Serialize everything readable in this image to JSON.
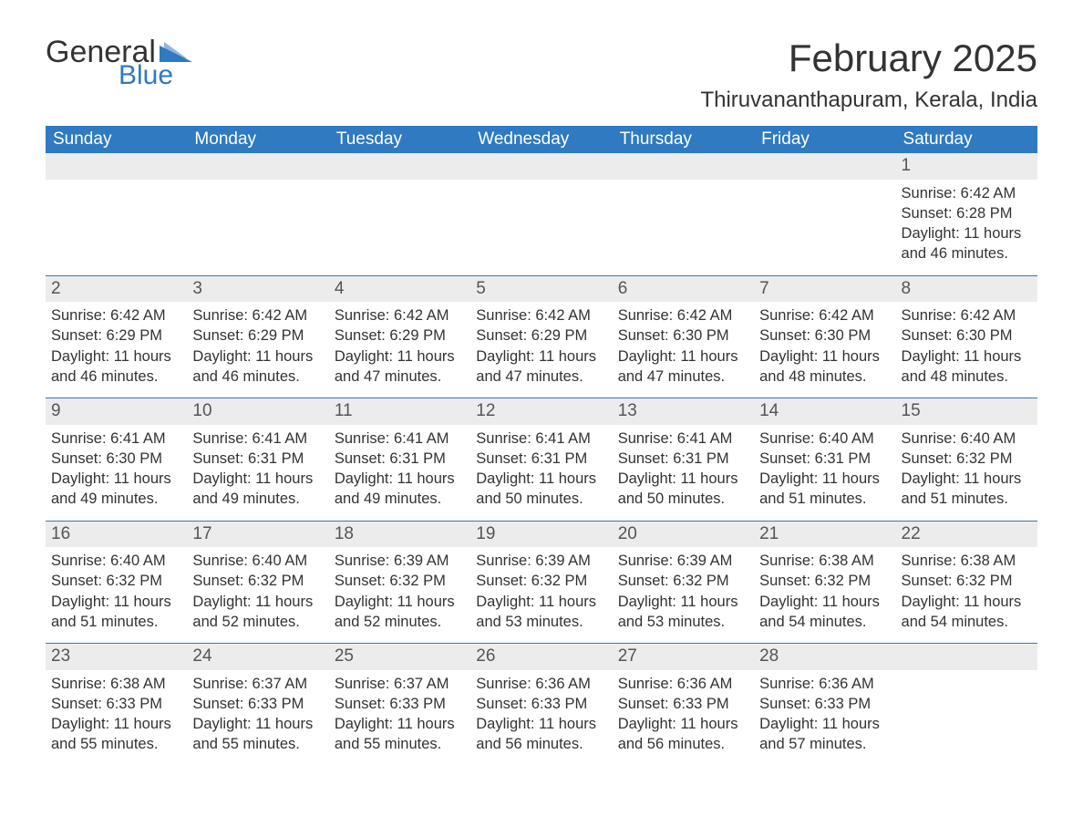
{
  "logo": {
    "text_general": "General",
    "text_blue": "Blue",
    "shape_color": "#2f7ac0"
  },
  "title": "February 2025",
  "location": "Thiruvananthapuram, Kerala, India",
  "colors": {
    "header_bg": "#2f7ac0",
    "header_text": "#ffffff",
    "daynum_bg": "#ececec",
    "daynum_text": "#555555",
    "body_text": "#333333",
    "week_border": "#2f7ac0",
    "page_bg": "#ffffff"
  },
  "typography": {
    "title_fontsize": 42,
    "location_fontsize": 24,
    "dayheader_fontsize": 19,
    "daynum_fontsize": 19,
    "body_fontsize": 16.5,
    "font_family": "Arial"
  },
  "day_headers": [
    "Sunday",
    "Monday",
    "Tuesday",
    "Wednesday",
    "Thursday",
    "Friday",
    "Saturday"
  ],
  "weeks": [
    [
      null,
      null,
      null,
      null,
      null,
      null,
      {
        "n": "1",
        "sunrise": "Sunrise: 6:42 AM",
        "sunset": "Sunset: 6:28 PM",
        "daylight": "Daylight: 11 hours and 46 minutes."
      }
    ],
    [
      {
        "n": "2",
        "sunrise": "Sunrise: 6:42 AM",
        "sunset": "Sunset: 6:29 PM",
        "daylight": "Daylight: 11 hours and 46 minutes."
      },
      {
        "n": "3",
        "sunrise": "Sunrise: 6:42 AM",
        "sunset": "Sunset: 6:29 PM",
        "daylight": "Daylight: 11 hours and 46 minutes."
      },
      {
        "n": "4",
        "sunrise": "Sunrise: 6:42 AM",
        "sunset": "Sunset: 6:29 PM",
        "daylight": "Daylight: 11 hours and 47 minutes."
      },
      {
        "n": "5",
        "sunrise": "Sunrise: 6:42 AM",
        "sunset": "Sunset: 6:29 PM",
        "daylight": "Daylight: 11 hours and 47 minutes."
      },
      {
        "n": "6",
        "sunrise": "Sunrise: 6:42 AM",
        "sunset": "Sunset: 6:30 PM",
        "daylight": "Daylight: 11 hours and 47 minutes."
      },
      {
        "n": "7",
        "sunrise": "Sunrise: 6:42 AM",
        "sunset": "Sunset: 6:30 PM",
        "daylight": "Daylight: 11 hours and 48 minutes."
      },
      {
        "n": "8",
        "sunrise": "Sunrise: 6:42 AM",
        "sunset": "Sunset: 6:30 PM",
        "daylight": "Daylight: 11 hours and 48 minutes."
      }
    ],
    [
      {
        "n": "9",
        "sunrise": "Sunrise: 6:41 AM",
        "sunset": "Sunset: 6:30 PM",
        "daylight": "Daylight: 11 hours and 49 minutes."
      },
      {
        "n": "10",
        "sunrise": "Sunrise: 6:41 AM",
        "sunset": "Sunset: 6:31 PM",
        "daylight": "Daylight: 11 hours and 49 minutes."
      },
      {
        "n": "11",
        "sunrise": "Sunrise: 6:41 AM",
        "sunset": "Sunset: 6:31 PM",
        "daylight": "Daylight: 11 hours and 49 minutes."
      },
      {
        "n": "12",
        "sunrise": "Sunrise: 6:41 AM",
        "sunset": "Sunset: 6:31 PM",
        "daylight": "Daylight: 11 hours and 50 minutes."
      },
      {
        "n": "13",
        "sunrise": "Sunrise: 6:41 AM",
        "sunset": "Sunset: 6:31 PM",
        "daylight": "Daylight: 11 hours and 50 minutes."
      },
      {
        "n": "14",
        "sunrise": "Sunrise: 6:40 AM",
        "sunset": "Sunset: 6:31 PM",
        "daylight": "Daylight: 11 hours and 51 minutes."
      },
      {
        "n": "15",
        "sunrise": "Sunrise: 6:40 AM",
        "sunset": "Sunset: 6:32 PM",
        "daylight": "Daylight: 11 hours and 51 minutes."
      }
    ],
    [
      {
        "n": "16",
        "sunrise": "Sunrise: 6:40 AM",
        "sunset": "Sunset: 6:32 PM",
        "daylight": "Daylight: 11 hours and 51 minutes."
      },
      {
        "n": "17",
        "sunrise": "Sunrise: 6:40 AM",
        "sunset": "Sunset: 6:32 PM",
        "daylight": "Daylight: 11 hours and 52 minutes."
      },
      {
        "n": "18",
        "sunrise": "Sunrise: 6:39 AM",
        "sunset": "Sunset: 6:32 PM",
        "daylight": "Daylight: 11 hours and 52 minutes."
      },
      {
        "n": "19",
        "sunrise": "Sunrise: 6:39 AM",
        "sunset": "Sunset: 6:32 PM",
        "daylight": "Daylight: 11 hours and 53 minutes."
      },
      {
        "n": "20",
        "sunrise": "Sunrise: 6:39 AM",
        "sunset": "Sunset: 6:32 PM",
        "daylight": "Daylight: 11 hours and 53 minutes."
      },
      {
        "n": "21",
        "sunrise": "Sunrise: 6:38 AM",
        "sunset": "Sunset: 6:32 PM",
        "daylight": "Daylight: 11 hours and 54 minutes."
      },
      {
        "n": "22",
        "sunrise": "Sunrise: 6:38 AM",
        "sunset": "Sunset: 6:32 PM",
        "daylight": "Daylight: 11 hours and 54 minutes."
      }
    ],
    [
      {
        "n": "23",
        "sunrise": "Sunrise: 6:38 AM",
        "sunset": "Sunset: 6:33 PM",
        "daylight": "Daylight: 11 hours and 55 minutes."
      },
      {
        "n": "24",
        "sunrise": "Sunrise: 6:37 AM",
        "sunset": "Sunset: 6:33 PM",
        "daylight": "Daylight: 11 hours and 55 minutes."
      },
      {
        "n": "25",
        "sunrise": "Sunrise: 6:37 AM",
        "sunset": "Sunset: 6:33 PM",
        "daylight": "Daylight: 11 hours and 55 minutes."
      },
      {
        "n": "26",
        "sunrise": "Sunrise: 6:36 AM",
        "sunset": "Sunset: 6:33 PM",
        "daylight": "Daylight: 11 hours and 56 minutes."
      },
      {
        "n": "27",
        "sunrise": "Sunrise: 6:36 AM",
        "sunset": "Sunset: 6:33 PM",
        "daylight": "Daylight: 11 hours and 56 minutes."
      },
      {
        "n": "28",
        "sunrise": "Sunrise: 6:36 AM",
        "sunset": "Sunset: 6:33 PM",
        "daylight": "Daylight: 11 hours and 57 minutes."
      },
      null
    ]
  ]
}
